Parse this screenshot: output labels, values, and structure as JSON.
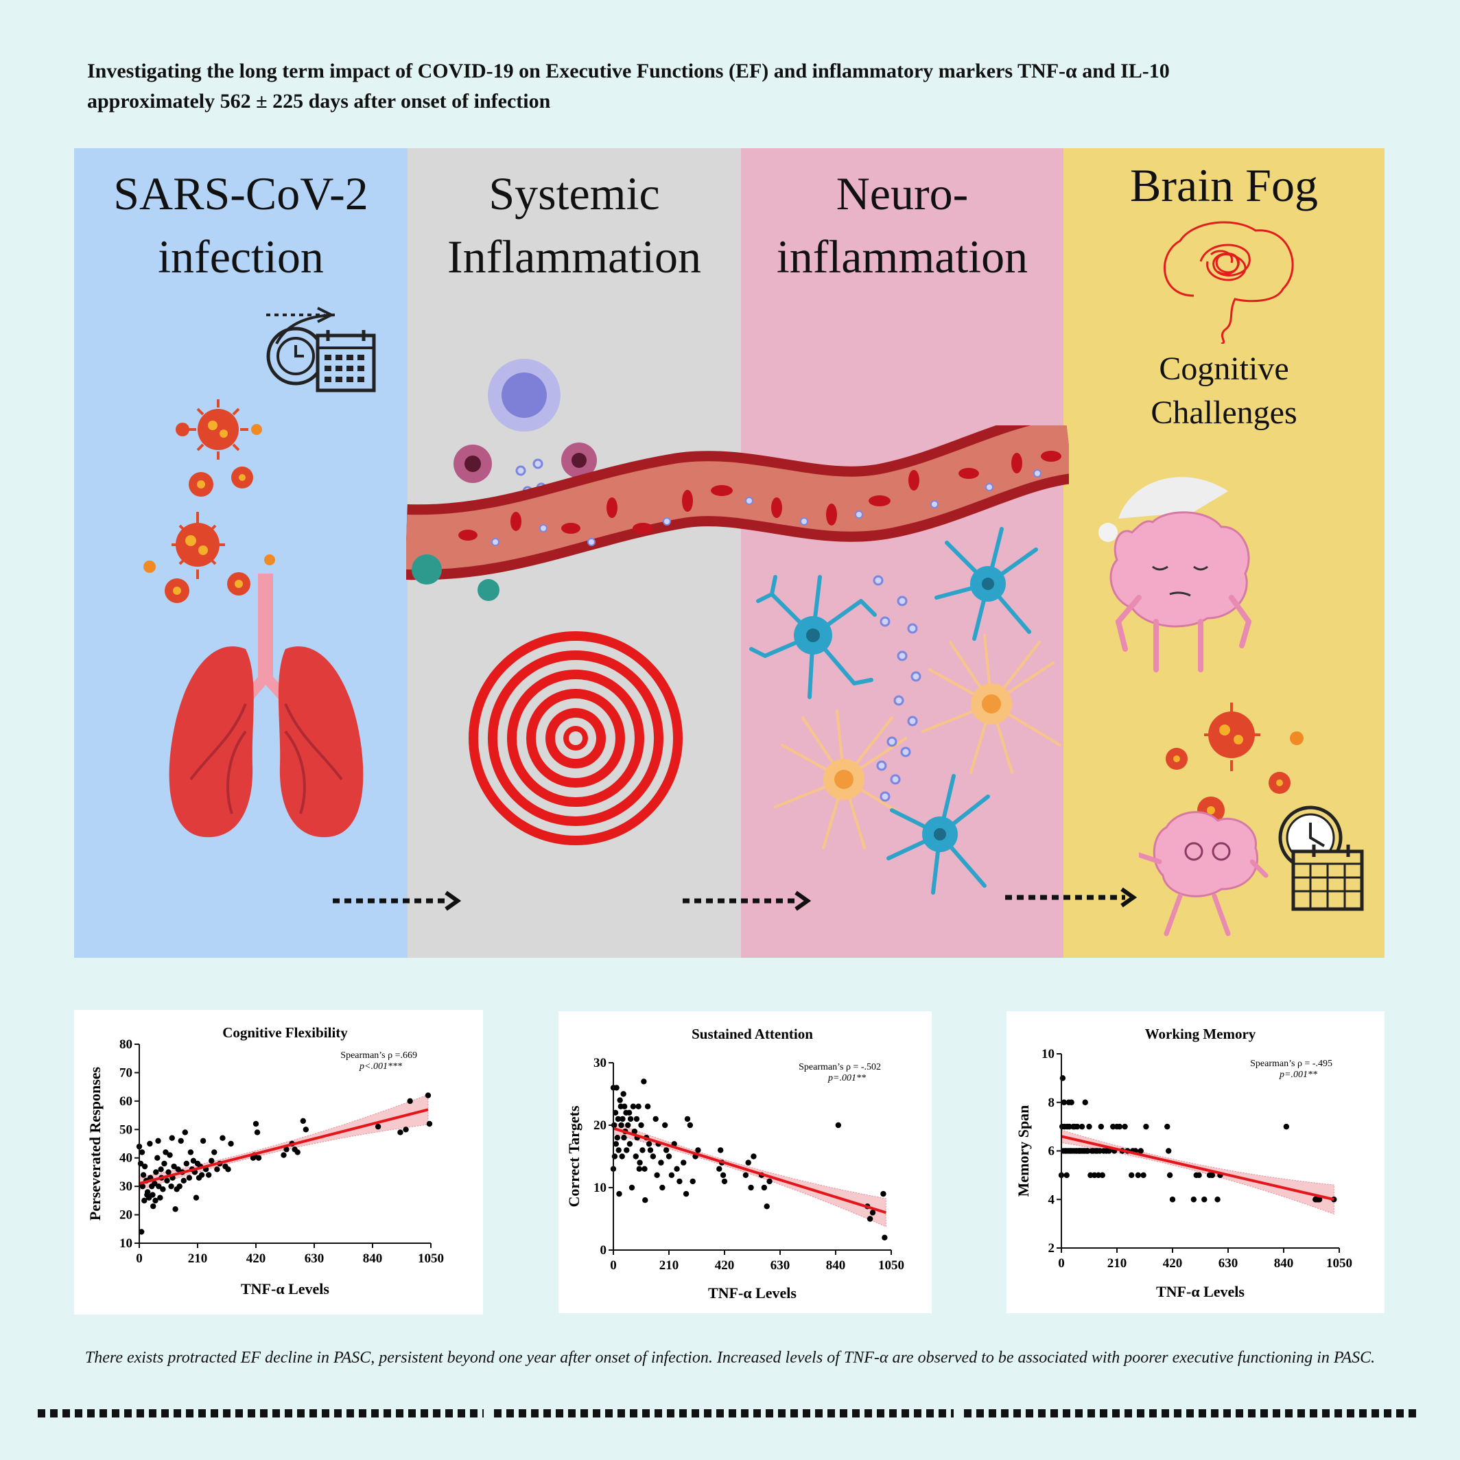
{
  "title": {
    "line1": "Investigating the long term impact of COVID-19 on Executive Functions (EF) and inflammatory markers TNF-α and IL-10",
    "line2": "approximately 562 ± 225 days after onset of infection"
  },
  "panels": [
    {
      "title_line1": "SARS-CoV-2",
      "title_line2": "infection",
      "color": "#b3d3f7"
    },
    {
      "title_line1": "Systemic",
      "title_line2": "Inflammation",
      "color": "#d8d8d8"
    },
    {
      "title_line1": "Neuro-",
      "title_line2": "inflammation",
      "color": "#e9b4c7"
    },
    {
      "title_line1": "Brain Fog",
      "subtitle_line1": "Cognitive",
      "subtitle_line2": "Challenges",
      "color": "#efd77a"
    }
  ],
  "icons": [
    "clock-calendar-icon",
    "virus-icon",
    "lungs-icon",
    "lymphocyte-icon",
    "cytokine-icon",
    "blood-vessel-icon",
    "target-icon",
    "microglia-icon",
    "astrocyte-icon",
    "tangled-thought-icon",
    "sleepy-brain-icon",
    "dizzy-brain-icon",
    "arrow-right-icon"
  ],
  "chart_data": [
    {
      "type": "scatter",
      "title": "Cognitive Flexibility",
      "xlabel": "TNF-α  Levels",
      "ylabel": "Perseverated Responses",
      "xlim": [
        0,
        1050
      ],
      "ylim": [
        10,
        80
      ],
      "xticks": [
        0,
        210,
        420,
        630,
        840,
        1050
      ],
      "yticks": [
        10,
        20,
        30,
        40,
        50,
        60,
        70,
        80
      ],
      "stat_line1": "Spearman’s ρ =.669",
      "stat_line2": "p<.001***",
      "fit": {
        "x": [
          0,
          1040
        ],
        "y": [
          31,
          57
        ]
      },
      "points": [
        [
          0,
          44
        ],
        [
          5,
          38
        ],
        [
          8,
          14
        ],
        [
          10,
          42
        ],
        [
          12,
          30
        ],
        [
          15,
          34
        ],
        [
          18,
          25
        ],
        [
          20,
          37
        ],
        [
          25,
          32
        ],
        [
          28,
          27
        ],
        [
          30,
          28
        ],
        [
          35,
          26
        ],
        [
          38,
          45
        ],
        [
          40,
          33
        ],
        [
          45,
          30
        ],
        [
          48,
          27
        ],
        [
          50,
          23
        ],
        [
          55,
          31
        ],
        [
          58,
          25
        ],
        [
          60,
          35
        ],
        [
          65,
          40
        ],
        [
          68,
          46
        ],
        [
          70,
          30
        ],
        [
          75,
          26
        ],
        [
          78,
          36
        ],
        [
          80,
          33
        ],
        [
          85,
          29
        ],
        [
          90,
          38
        ],
        [
          95,
          42
        ],
        [
          100,
          32
        ],
        [
          105,
          35
        ],
        [
          110,
          41
        ],
        [
          115,
          30
        ],
        [
          118,
          47
        ],
        [
          120,
          33
        ],
        [
          125,
          37
        ],
        [
          130,
          22
        ],
        [
          135,
          29
        ],
        [
          140,
          36
        ],
        [
          145,
          30
        ],
        [
          150,
          46
        ],
        [
          155,
          35
        ],
        [
          160,
          32
        ],
        [
          165,
          49
        ],
        [
          170,
          38
        ],
        [
          180,
          33
        ],
        [
          185,
          42
        ],
        [
          190,
          36
        ],
        [
          195,
          39
        ],
        [
          200,
          35
        ],
        [
          205,
          26
        ],
        [
          210,
          38
        ],
        [
          215,
          33
        ],
        [
          220,
          37
        ],
        [
          225,
          34
        ],
        [
          230,
          46
        ],
        [
          240,
          36
        ],
        [
          250,
          34
        ],
        [
          260,
          39
        ],
        [
          270,
          42
        ],
        [
          280,
          36
        ],
        [
          290,
          38
        ],
        [
          300,
          47
        ],
        [
          310,
          37
        ],
        [
          320,
          36
        ],
        [
          330,
          45
        ],
        [
          410,
          40
        ],
        [
          415,
          41
        ],
        [
          420,
          52
        ],
        [
          425,
          49
        ],
        [
          430,
          40
        ],
        [
          520,
          41
        ],
        [
          530,
          43
        ],
        [
          550,
          45
        ],
        [
          560,
          43
        ],
        [
          570,
          42
        ],
        [
          590,
          53
        ],
        [
          600,
          50
        ],
        [
          860,
          51
        ],
        [
          940,
          49
        ],
        [
          960,
          50
        ],
        [
          975,
          60
        ],
        [
          1040,
          62
        ],
        [
          1045,
          52
        ]
      ]
    },
    {
      "type": "scatter",
      "title": "Sustained Attention",
      "xlabel": "TNF-α  Levels",
      "ylabel": "Correct Targets",
      "xlim": [
        0,
        1050
      ],
      "ylim": [
        0,
        30
      ],
      "xticks": [
        0,
        210,
        420,
        630,
        840,
        1050
      ],
      "yticks": [
        0,
        10,
        20,
        30
      ],
      "stat_line1": "Spearman’s ρ = -.502",
      "stat_line2": "p=.001**",
      "fit": {
        "x": [
          0,
          1030
        ],
        "y": [
          19.5,
          6
        ]
      },
      "points": [
        [
          0,
          26
        ],
        [
          0,
          13
        ],
        [
          3,
          20
        ],
        [
          5,
          15
        ],
        [
          8,
          22
        ],
        [
          10,
          17
        ],
        [
          12,
          26
        ],
        [
          15,
          18
        ],
        [
          18,
          21
        ],
        [
          20,
          16
        ],
        [
          22,
          9
        ],
        [
          25,
          24
        ],
        [
          28,
          23
        ],
        [
          30,
          20
        ],
        [
          33,
          15
        ],
        [
          35,
          21
        ],
        [
          38,
          25
        ],
        [
          40,
          18
        ],
        [
          42,
          23
        ],
        [
          45,
          19
        ],
        [
          48,
          22
        ],
        [
          50,
          16
        ],
        [
          55,
          20
        ],
        [
          60,
          22
        ],
        [
          62,
          17
        ],
        [
          65,
          21
        ],
        [
          70,
          10
        ],
        [
          75,
          23
        ],
        [
          80,
          19
        ],
        [
          85,
          15
        ],
        [
          88,
          21
        ],
        [
          90,
          18
        ],
        [
          95,
          23
        ],
        [
          98,
          13
        ],
        [
          100,
          14
        ],
        [
          105,
          20
        ],
        [
          110,
          16
        ],
        [
          115,
          27
        ],
        [
          118,
          13
        ],
        [
          120,
          8
        ],
        [
          125,
          18
        ],
        [
          130,
          23
        ],
        [
          135,
          17
        ],
        [
          140,
          16
        ],
        [
          150,
          15
        ],
        [
          160,
          21
        ],
        [
          165,
          12
        ],
        [
          170,
          17
        ],
        [
          180,
          14
        ],
        [
          185,
          10
        ],
        [
          195,
          20
        ],
        [
          200,
          16
        ],
        [
          210,
          15
        ],
        [
          220,
          12
        ],
        [
          230,
          17
        ],
        [
          240,
          13
        ],
        [
          250,
          11
        ],
        [
          265,
          14
        ],
        [
          275,
          9
        ],
        [
          280,
          21
        ],
        [
          290,
          20
        ],
        [
          300,
          11
        ],
        [
          310,
          15
        ],
        [
          320,
          16
        ],
        [
          400,
          13
        ],
        [
          405,
          16
        ],
        [
          410,
          14
        ],
        [
          415,
          12
        ],
        [
          420,
          11
        ],
        [
          500,
          12
        ],
        [
          510,
          14
        ],
        [
          520,
          10
        ],
        [
          530,
          15
        ],
        [
          560,
          12
        ],
        [
          570,
          10
        ],
        [
          580,
          7
        ],
        [
          590,
          11
        ],
        [
          850,
          20
        ],
        [
          960,
          7
        ],
        [
          970,
          5
        ],
        [
          980,
          6
        ],
        [
          1020,
          9
        ],
        [
          1025,
          2
        ]
      ]
    },
    {
      "type": "scatter",
      "title": "Working Memory",
      "xlabel": "TNF-α  Levels",
      "ylabel": "Memory Span",
      "xlim": [
        0,
        1050
      ],
      "ylim": [
        2,
        10
      ],
      "xticks": [
        0,
        210,
        420,
        630,
        840,
        1050
      ],
      "yticks": [
        2,
        4,
        6,
        8,
        10
      ],
      "stat_line1": "Spearman’s ρ = -.495",
      "stat_line2": "p=.001**",
      "fit": {
        "x": [
          0,
          1030
        ],
        "y": [
          6.6,
          4
        ]
      },
      "points": [
        [
          0,
          5
        ],
        [
          3,
          7
        ],
        [
          5,
          9
        ],
        [
          8,
          6
        ],
        [
          10,
          8
        ],
        [
          12,
          7
        ],
        [
          15,
          6
        ],
        [
          18,
          6
        ],
        [
          20,
          5
        ],
        [
          22,
          7
        ],
        [
          25,
          6
        ],
        [
          28,
          8
        ],
        [
          30,
          7
        ],
        [
          32,
          6
        ],
        [
          35,
          6
        ],
        [
          38,
          8
        ],
        [
          40,
          6
        ],
        [
          45,
          7
        ],
        [
          48,
          6
        ],
        [
          50,
          7
        ],
        [
          55,
          6
        ],
        [
          58,
          6
        ],
        [
          60,
          7
        ],
        [
          65,
          6
        ],
        [
          68,
          6
        ],
        [
          70,
          6
        ],
        [
          75,
          6
        ],
        [
          78,
          7
        ],
        [
          80,
          6
        ],
        [
          85,
          6
        ],
        [
          88,
          6
        ],
        [
          90,
          8
        ],
        [
          95,
          6
        ],
        [
          98,
          6
        ],
        [
          100,
          6
        ],
        [
          105,
          7
        ],
        [
          110,
          5
        ],
        [
          115,
          6
        ],
        [
          120,
          6
        ],
        [
          125,
          5
        ],
        [
          130,
          6
        ],
        [
          135,
          6
        ],
        [
          140,
          5
        ],
        [
          145,
          6
        ],
        [
          150,
          7
        ],
        [
          155,
          5
        ],
        [
          160,
          6
        ],
        [
          170,
          6
        ],
        [
          180,
          6
        ],
        [
          195,
          7
        ],
        [
          200,
          6
        ],
        [
          210,
          7
        ],
        [
          220,
          7
        ],
        [
          230,
          6
        ],
        [
          240,
          7
        ],
        [
          250,
          6
        ],
        [
          265,
          5
        ],
        [
          270,
          6
        ],
        [
          280,
          6
        ],
        [
          290,
          5
        ],
        [
          300,
          6
        ],
        [
          310,
          5
        ],
        [
          320,
          7
        ],
        [
          400,
          7
        ],
        [
          405,
          6
        ],
        [
          410,
          5
        ],
        [
          420,
          4
        ],
        [
          500,
          4
        ],
        [
          510,
          5
        ],
        [
          520,
          5
        ],
        [
          540,
          4
        ],
        [
          560,
          5
        ],
        [
          570,
          5
        ],
        [
          590,
          4
        ],
        [
          600,
          5
        ],
        [
          850,
          7
        ],
        [
          960,
          4
        ],
        [
          965,
          4
        ],
        [
          970,
          4
        ],
        [
          975,
          4
        ],
        [
          1030,
          4
        ]
      ]
    }
  ],
  "conclusion": "There exists protracted EF decline in PASC, persistent beyond one year after onset of infection. Increased levels of TNF-α are observed to be associated with poorer executive functioning in PASC.",
  "colors": {
    "fit_line": "#e3161c",
    "ci_band": "#f6c9cd",
    "points": "#000000",
    "background": "#e3f4f4"
  }
}
